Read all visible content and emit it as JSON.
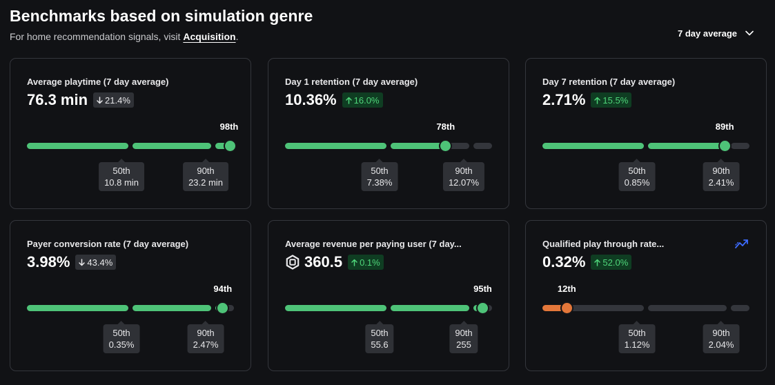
{
  "header": {
    "title": "Benchmarks based on simulation genre",
    "subtitle_prefix": "For home recommendation signals, visit ",
    "subtitle_link": "Acquisition",
    "subtitle_suffix": ".",
    "period_label": "7 day average"
  },
  "colors": {
    "filled": "#4ec378",
    "empty": "#34363c",
    "orange": "#e4773a",
    "up_text": "#4fd67a",
    "up_bg": "#0f3d22",
    "down_bg": "#2f3136"
  },
  "cards": [
    {
      "title": "Average playtime (7 day average)",
      "value": "76.3 min",
      "change": "21.4%",
      "direction": "down",
      "percentile_label": "98th",
      "percentile": 98,
      "p50_label": "50th",
      "p50_value": "10.8 min",
      "p90_label": "90th",
      "p90_value": "23.2 min"
    },
    {
      "title": "Day 1 retention (7 day average)",
      "value": "10.36%",
      "change": "16.0%",
      "direction": "up",
      "percentile_label": "78th",
      "percentile": 78,
      "p50_label": "50th",
      "p50_value": "7.38%",
      "p90_label": "90th",
      "p90_value": "12.07%"
    },
    {
      "title": "Day 7 retention (7 day average)",
      "value": "2.71%",
      "change": "15.5%",
      "direction": "up",
      "percentile_label": "89th",
      "percentile": 89,
      "p50_label": "50th",
      "p50_value": "0.85%",
      "p90_label": "90th",
      "p90_value": "2.41%"
    },
    {
      "title": "Payer conversion rate (7 day average)",
      "value": "3.98%",
      "change": "43.4%",
      "direction": "down",
      "percentile_label": "94th",
      "percentile": 94,
      "p50_label": "50th",
      "p50_value": "0.35%",
      "p90_label": "90th",
      "p90_value": "2.47%"
    },
    {
      "title": "Average revenue per paying user (7 day...",
      "value": "360.5",
      "currency_icon": "robux-icon",
      "change": "0.1%",
      "direction": "up",
      "percentile_label": "95th",
      "percentile": 95,
      "p50_label": "50th",
      "p50_value": "55.6",
      "p90_label": "90th",
      "p90_value": "255"
    },
    {
      "title": "Qualified play through rate...",
      "value": "0.32%",
      "change": "52.0%",
      "direction": "up",
      "trend_icon": "trend-chart-icon",
      "percentile_label": "12th",
      "percentile": 12,
      "low": true,
      "p50_label": "50th",
      "p50_value": "1.12%",
      "p90_label": "90th",
      "p90_value": "2.04%"
    }
  ]
}
